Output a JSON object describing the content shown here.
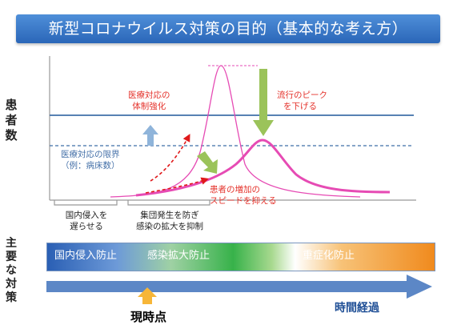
{
  "title": "新型コロナウイルス対策の目的（基本的な考え方）",
  "y_axis_label": [
    "患",
    "者",
    "数"
  ],
  "annotations": {
    "medical_strengthen": [
      "医療対応の",
      "体制強化"
    ],
    "peak_lower": [
      "流行のピーク",
      "を下げる"
    ],
    "capacity_limit": [
      "医療対応の限界",
      "（例：病床数）"
    ],
    "slow_increase": [
      "患者の増加の",
      "スピードを抑える"
    ]
  },
  "phase_labels": {
    "delay_entry": [
      "国内侵入を",
      "遅らせる"
    ],
    "suppress_spread": [
      "集団発生を防ぎ",
      "感染の拡大を抑制"
    ]
  },
  "side_label": [
    "主",
    "要",
    "な",
    "対",
    "策"
  ],
  "measures": [
    "国内侵入防止",
    "感染拡大防止",
    "重症化防止"
  ],
  "time_label": "時間経過",
  "now_label": "現時点",
  "colors": {
    "title_bar": "#3b7bd0",
    "curve": "#e64bb4",
    "capacity_line": "#3f6fa8",
    "arrow_green": "#9bc35a",
    "arrow_blue": "#8fb4da",
    "arrow_red": "#e0191b",
    "now_arrow": "#f7b638",
    "time_arrow": "#5c87c6"
  },
  "icons": [
    "up-arrow-icon",
    "down-arrow-icon",
    "diagonal-arrow-icon",
    "timeline-arrow-icon",
    "now-marker-icon"
  ]
}
